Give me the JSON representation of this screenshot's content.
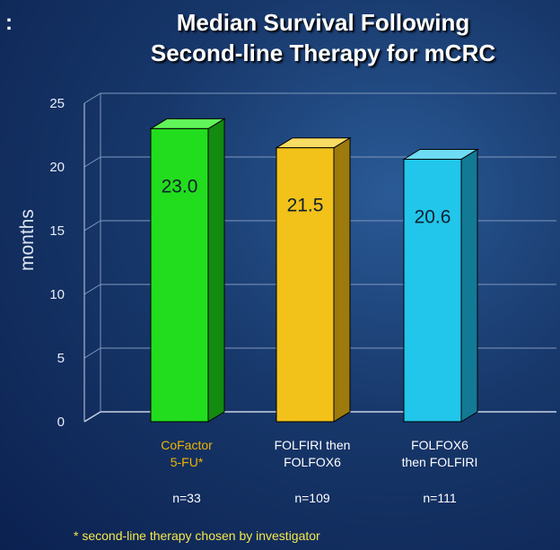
{
  "header": {
    "corner_mark": ":",
    "title_line1": "Median Survival Following",
    "title_line2": "Second-line Therapy for mCRC"
  },
  "footnote": "*  second-line therapy chosen by investigator",
  "chart_data": {
    "type": "bar",
    "title": "Median Survival Following Second-line Therapy for mCRC",
    "ylabel": "months",
    "xlabel": "",
    "ylim": [
      0,
      25
    ],
    "yticks": [
      0,
      5,
      10,
      15,
      20,
      25
    ],
    "grid": true,
    "categories": [
      {
        "lines": [
          "CoFactor",
          "5-FU*"
        ],
        "n": "n=33"
      },
      {
        "lines": [
          "FOLFIRI then",
          "FOLFOX6"
        ],
        "n": "n=109"
      },
      {
        "lines": [
          "FOLFOX6",
          "then FOLFIRI"
        ],
        "n": "n=111"
      }
    ],
    "values": [
      23.0,
      21.5,
      20.6
    ],
    "value_labels": [
      "23.0",
      "21.5",
      "20.6"
    ],
    "colors": [
      {
        "front": "#22dd1e",
        "side": "#138a10",
        "top": "#62f55a"
      },
      {
        "front": "#f2c21a",
        "side": "#9c7a0c",
        "top": "#f8dc63"
      },
      {
        "front": "#22c6ea",
        "side": "#137a95",
        "top": "#6ddcf4"
      }
    ],
    "category_label_colors": [
      "#f0b400",
      "#ffffff",
      "#ffffff"
    ]
  }
}
